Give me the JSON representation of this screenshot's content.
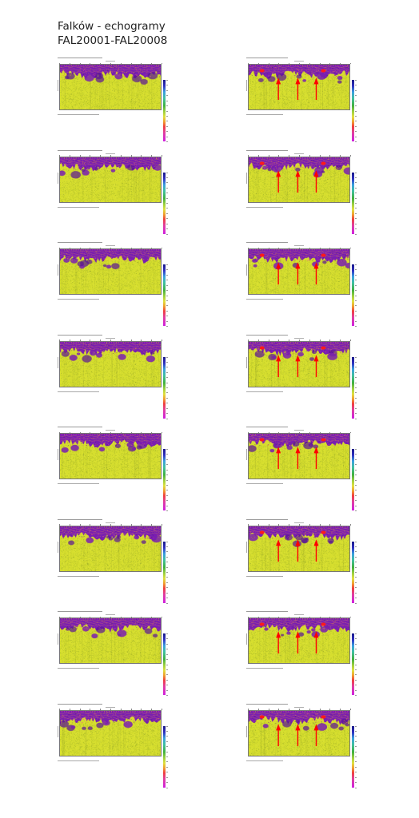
{
  "header": {
    "title_line1": "Falków - echogramy",
    "title_line2": "FAL20001-FAL20008"
  },
  "colors": {
    "background": "#ffffff",
    "echo_background": "#d8e02c",
    "echo_surface": "#7a1fb0",
    "annotation_arrows": "#ff0000"
  },
  "columns": {
    "left": {
      "annotated": false
    },
    "right": {
      "annotated": true,
      "arrow_icon": "red-arrow-icon",
      "dot_icon": "red-dot-icon"
    }
  }
}
